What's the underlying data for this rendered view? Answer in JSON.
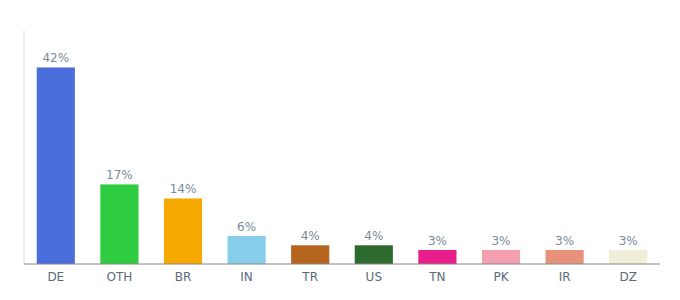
{
  "chart_data": {
    "type": "bar",
    "categories": [
      "DE",
      "OTH",
      "BR",
      "IN",
      "TR",
      "US",
      "TN",
      "PK",
      "IR",
      "DZ"
    ],
    "values": [
      42,
      17,
      14,
      6,
      4,
      4,
      3,
      3,
      3,
      3
    ],
    "value_labels": [
      "42%",
      "17%",
      "14%",
      "6%",
      "4%",
      "4%",
      "3%",
      "3%",
      "3%",
      "3%"
    ],
    "colors": [
      "#4a6fdc",
      "#2ecc40",
      "#f5a800",
      "#87ceeb",
      "#b5651d",
      "#2d6a2d",
      "#e91e8c",
      "#f4a0b0",
      "#e8927c",
      "#f0edd8"
    ],
    "ylim": [
      0,
      50
    ],
    "grid": false,
    "data_labels": true,
    "tick_labels": "x"
  }
}
